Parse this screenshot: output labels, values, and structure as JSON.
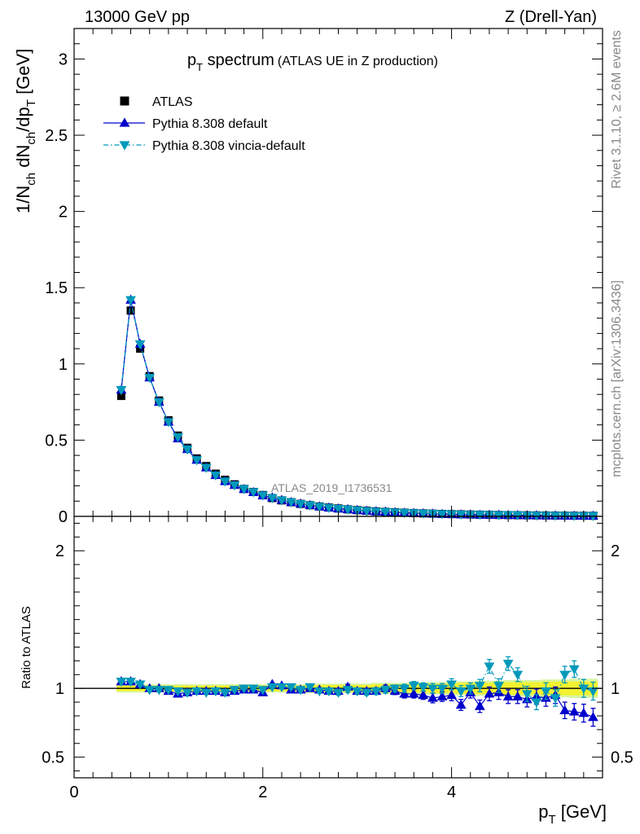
{
  "header": {
    "left_label": "13000 GeV pp",
    "right_label": "Z (Drell-Yan)"
  },
  "side_labels": {
    "rivet": "Rivet 3.1.10, ≥ 2.6M events",
    "mcplots": "mcplots.cern.ch [arXiv:1306.3436]"
  },
  "colors": {
    "atlas": "#000000",
    "pythia_default": "#0000cc",
    "pythia_vincia": "#0099bb",
    "band_inner": "#f2f230",
    "band_outer": "#d8f5a0"
  },
  "chart_data": [
    {
      "type": "line",
      "title_main": "p",
      "title_sub": "T",
      "title_rest": " spectrum",
      "title_extra": "(ATLAS UE in Z production)",
      "watermark": "ATLAS_2019_I1736531",
      "ylabel_parts": [
        "1/N",
        "ch",
        " dN",
        "ch",
        "/dp",
        "T",
        " [GeV]"
      ],
      "xlim": [
        0,
        5.6
      ],
      "ylim": [
        0,
        3.2
      ],
      "yticks": [
        0,
        0.5,
        1,
        1.5,
        2,
        2.5,
        3
      ],
      "ytick_labels": [
        "0",
        "0.5",
        "1",
        "1.5",
        "2",
        "2.5",
        "3"
      ],
      "legend": [
        {
          "label": "ATLAS",
          "marker": "square"
        },
        {
          "label": "Pythia 8.308 default",
          "marker": "triangle-up"
        },
        {
          "label": "Pythia 8.308 vincia-default",
          "marker": "triangle-down"
        }
      ],
      "x": [
        0.5,
        0.6,
        0.7,
        0.8,
        0.9,
        1.0,
        1.1,
        1.2,
        1.3,
        1.4,
        1.5,
        1.6,
        1.7,
        1.8,
        1.9,
        2.0,
        2.1,
        2.2,
        2.3,
        2.4,
        2.5,
        2.6,
        2.7,
        2.8,
        2.9,
        3.0,
        3.1,
        3.2,
        3.3,
        3.4,
        3.5,
        3.6,
        3.7,
        3.8,
        3.9,
        4.0,
        4.1,
        4.2,
        4.3,
        4.4,
        4.5,
        4.6,
        4.7,
        4.8,
        4.9,
        5.0,
        5.1,
        5.2,
        5.3,
        5.4,
        5.5
      ],
      "series": [
        {
          "name": "ATLAS",
          "values": [
            0.79,
            1.35,
            1.1,
            0.92,
            0.76,
            0.63,
            0.53,
            0.45,
            0.38,
            0.33,
            0.28,
            0.24,
            0.21,
            0.18,
            0.16,
            0.14,
            0.12,
            0.105,
            0.093,
            0.082,
            0.073,
            0.065,
            0.058,
            0.052,
            0.046,
            0.041,
            0.037,
            0.033,
            0.03,
            0.027,
            0.024,
            0.022,
            0.02,
            0.018,
            0.016,
            0.0148,
            0.0134,
            0.0122,
            0.0111,
            0.0101,
            0.0092,
            0.0084,
            0.0077,
            0.007,
            0.0064,
            0.0058,
            0.0053,
            0.0049,
            0.0045,
            0.0041,
            0.0038
          ]
        },
        {
          "name": "Pythia 8.308 default",
          "values": [
            0.83,
            1.42,
            1.13,
            0.91,
            0.75,
            0.62,
            0.51,
            0.44,
            0.37,
            0.32,
            0.27,
            0.23,
            0.205,
            0.178,
            0.158,
            0.136,
            0.123,
            0.107,
            0.093,
            0.083,
            0.073,
            0.064,
            0.057,
            0.051,
            0.046,
            0.04,
            0.036,
            0.032,
            0.03,
            0.026,
            0.023,
            0.021,
            0.019,
            0.017,
            0.015,
            0.014,
            0.0118,
            0.0118,
            0.0097,
            0.0096,
            0.0089,
            0.0078,
            0.0072,
            0.0064,
            0.006,
            0.0054,
            0.005,
            0.0041,
            0.0037,
            0.0034,
            0.003
          ]
        },
        {
          "name": "Pythia 8.308 vincia-default",
          "values": [
            0.83,
            1.42,
            1.13,
            0.91,
            0.75,
            0.62,
            0.52,
            0.44,
            0.37,
            0.32,
            0.27,
            0.23,
            0.205,
            0.18,
            0.16,
            0.139,
            0.121,
            0.106,
            0.094,
            0.082,
            0.073,
            0.064,
            0.057,
            0.051,
            0.046,
            0.04,
            0.036,
            0.032,
            0.03,
            0.027,
            0.024,
            0.022,
            0.02,
            0.018,
            0.016,
            0.0145,
            0.013,
            0.0122,
            0.0112,
            0.0117,
            0.0094,
            0.0099,
            0.0085,
            0.0067,
            0.0063,
            0.0057,
            0.0053,
            0.0054,
            0.0043,
            0.004,
            0.0037
          ]
        }
      ]
    },
    {
      "type": "line",
      "ylabel": "Ratio to ATLAS",
      "xlabel_main": "p",
      "xlabel_sub": "T",
      "xlabel_rest": " [GeV]",
      "xlim": [
        0,
        5.6
      ],
      "ylim": [
        0.35,
        2.25
      ],
      "xticks": [
        0,
        2,
        4
      ],
      "xtick_labels": [
        "0",
        "2",
        "4"
      ],
      "yticks": [
        0.5,
        1,
        2
      ],
      "ytick_labels": [
        "0.5",
        "1",
        "2"
      ],
      "x": [
        0.5,
        0.6,
        0.7,
        0.8,
        0.9,
        1.0,
        1.1,
        1.2,
        1.3,
        1.4,
        1.5,
        1.6,
        1.7,
        1.8,
        1.9,
        2.0,
        2.1,
        2.2,
        2.3,
        2.4,
        2.5,
        2.6,
        2.7,
        2.8,
        2.9,
        3.0,
        3.1,
        3.2,
        3.3,
        3.4,
        3.5,
        3.6,
        3.7,
        3.8,
        3.9,
        4.0,
        4.1,
        4.2,
        4.3,
        4.4,
        4.5,
        4.6,
        4.7,
        4.8,
        4.9,
        5.0,
        5.1,
        5.2,
        5.3,
        5.4,
        5.5
      ],
      "band_inner": [
        0.02,
        0.02,
        0.02,
        0.02,
        0.02,
        0.02,
        0.02,
        0.02,
        0.02,
        0.02,
        0.02,
        0.02,
        0.02,
        0.02,
        0.02,
        0.02,
        0.02,
        0.02,
        0.02,
        0.02,
        0.025,
        0.025,
        0.025,
        0.025,
        0.025,
        0.025,
        0.025,
        0.03,
        0.03,
        0.03,
        0.03,
        0.03,
        0.03,
        0.035,
        0.035,
        0.035,
        0.04,
        0.04,
        0.04,
        0.04,
        0.04,
        0.045,
        0.045,
        0.045,
        0.045,
        0.05,
        0.05,
        0.05,
        0.05,
        0.05,
        0.05
      ],
      "band_outer": [
        0.03,
        0.03,
        0.03,
        0.03,
        0.03,
        0.03,
        0.03,
        0.03,
        0.03,
        0.03,
        0.03,
        0.03,
        0.03,
        0.03,
        0.03,
        0.03,
        0.03,
        0.03,
        0.03,
        0.03,
        0.035,
        0.035,
        0.035,
        0.035,
        0.035,
        0.035,
        0.035,
        0.04,
        0.04,
        0.04,
        0.04,
        0.04,
        0.045,
        0.045,
        0.045,
        0.05,
        0.05,
        0.05,
        0.055,
        0.055,
        0.055,
        0.06,
        0.06,
        0.06,
        0.06,
        0.065,
        0.065,
        0.065,
        0.07,
        0.07,
        0.07
      ],
      "series": [
        {
          "name": "Pythia 8.308 default",
          "values": [
            1.05,
            1.05,
            1.03,
            1.0,
            1.0,
            0.98,
            0.96,
            0.97,
            0.98,
            0.98,
            0.98,
            0.97,
            0.98,
            0.99,
            0.99,
            0.97,
            1.03,
            1.02,
            0.99,
            0.99,
            1.0,
            0.99,
            0.98,
            0.98,
            1.01,
            0.98,
            0.98,
            0.98,
            1.0,
            0.98,
            0.96,
            0.96,
            0.95,
            0.93,
            0.94,
            0.95,
            0.88,
            0.97,
            0.87,
            0.96,
            0.97,
            0.94,
            0.94,
            0.92,
            0.94,
            0.93,
            0.95,
            0.84,
            0.83,
            0.82,
            0.79
          ],
          "errors": [
            0.01,
            0.01,
            0.01,
            0.01,
            0.01,
            0.01,
            0.01,
            0.01,
            0.01,
            0.01,
            0.01,
            0.01,
            0.01,
            0.01,
            0.01,
            0.01,
            0.01,
            0.01,
            0.015,
            0.015,
            0.015,
            0.015,
            0.02,
            0.02,
            0.02,
            0.02,
            0.02,
            0.025,
            0.025,
            0.025,
            0.03,
            0.03,
            0.03,
            0.035,
            0.035,
            0.04,
            0.04,
            0.04,
            0.045,
            0.05,
            0.05,
            0.05,
            0.05,
            0.055,
            0.055,
            0.06,
            0.06,
            0.06,
            0.06,
            0.065,
            0.065
          ]
        },
        {
          "name": "Pythia 8.308 vincia-default",
          "values": [
            1.05,
            1.05,
            1.03,
            0.99,
            0.99,
            0.99,
            0.98,
            0.97,
            0.98,
            0.97,
            0.98,
            0.97,
            0.99,
            1.0,
            1.0,
            0.99,
            1.01,
            1.01,
            1.01,
            0.99,
            1.01,
            0.98,
            0.98,
            0.97,
            0.99,
            0.98,
            0.97,
            0.98,
            0.99,
            1.0,
            1.0,
            1.02,
            1.01,
            1.0,
            1.0,
            1.03,
            0.98,
            1.0,
            1.02,
            1.16,
            1.02,
            1.18,
            1.1,
            0.96,
            0.9,
            0.98,
            0.93,
            1.1,
            1.14,
            1.0,
            0.98
          ],
          "errors": [
            0.01,
            0.01,
            0.01,
            0.01,
            0.01,
            0.01,
            0.01,
            0.01,
            0.01,
            0.01,
            0.01,
            0.01,
            0.01,
            0.01,
            0.01,
            0.01,
            0.01,
            0.01,
            0.015,
            0.015,
            0.015,
            0.015,
            0.02,
            0.02,
            0.02,
            0.02,
            0.02,
            0.025,
            0.025,
            0.025,
            0.03,
            0.03,
            0.03,
            0.035,
            0.035,
            0.04,
            0.04,
            0.04,
            0.045,
            0.05,
            0.05,
            0.05,
            0.05,
            0.055,
            0.055,
            0.06,
            0.06,
            0.06,
            0.06,
            0.065,
            0.065
          ]
        }
      ]
    }
  ]
}
